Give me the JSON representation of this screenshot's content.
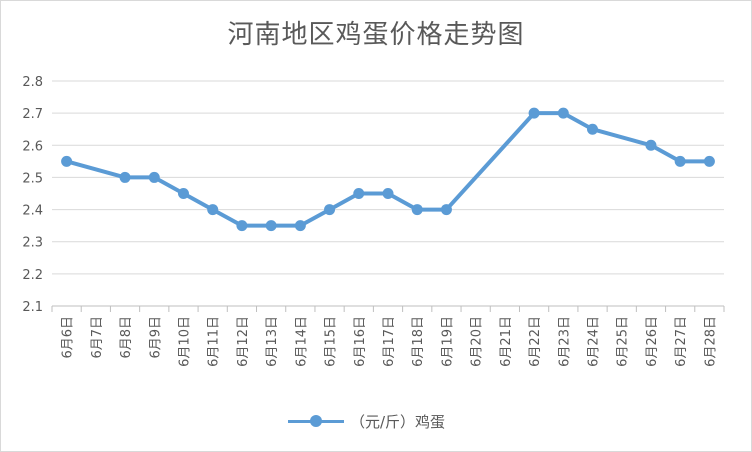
{
  "chart_data": {
    "type": "line",
    "title": "河南地区鸡蛋价格走势图",
    "categories": [
      "6月6日",
      "6月7日",
      "6月8日",
      "6月9日",
      "6月10日",
      "6月11日",
      "6月12日",
      "6月13日",
      "6月14日",
      "6月15日",
      "6月16日",
      "6月17日",
      "6月18日",
      "6月19日",
      "6月20日",
      "6月21日",
      "6月22日",
      "6月23日",
      "6月24日",
      "6月25日",
      "6月26日",
      "6月27日",
      "6月28日"
    ],
    "series": [
      {
        "name": "（元/斤）鸡蛋",
        "color": "#5b9bd5",
        "values": [
          2.55,
          null,
          2.5,
          2.5,
          2.45,
          2.4,
          2.35,
          2.35,
          2.35,
          2.4,
          2.45,
          2.45,
          2.4,
          2.4,
          null,
          null,
          2.7,
          2.7,
          2.65,
          null,
          2.6,
          2.55,
          2.55
        ]
      }
    ],
    "yticks": [
      "2.1",
      "2.2",
      "2.3",
      "2.4",
      "2.5",
      "2.6",
      "2.7",
      "2.8"
    ],
    "ylim": [
      2.1,
      2.8
    ],
    "grid": true,
    "legend": "bottom"
  }
}
